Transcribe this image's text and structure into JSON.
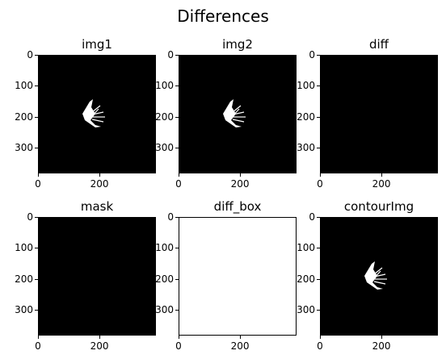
{
  "title": "Differences",
  "chart_data": [
    {
      "type": "image",
      "title": "img1",
      "fill": "#000000",
      "shape": true,
      "xticks": [
        "0",
        "200"
      ],
      "yticks": [
        "0",
        "100",
        "200",
        "300"
      ]
    },
    {
      "type": "image",
      "title": "img2",
      "fill": "#000000",
      "shape": true,
      "xticks": [
        "0",
        "200"
      ],
      "yticks": [
        "0",
        "100",
        "200",
        "300"
      ]
    },
    {
      "type": "image",
      "title": "diff",
      "fill": "#000000",
      "shape": false,
      "xticks": [
        "0",
        "200"
      ],
      "yticks": [
        "0",
        "100",
        "200",
        "300"
      ]
    },
    {
      "type": "image",
      "title": "mask",
      "fill": "#000000",
      "shape": false,
      "xticks": [
        "0",
        "200"
      ],
      "yticks": [
        "0",
        "100",
        "200",
        "300"
      ]
    },
    {
      "type": "image",
      "title": "diff_box",
      "fill": "#ffffff",
      "shape": false,
      "xticks": [
        "0",
        "200"
      ],
      "yticks": [
        "0",
        "100",
        "200",
        "300"
      ]
    },
    {
      "type": "image",
      "title": "contourImg",
      "fill": "#000000",
      "shape": true,
      "xticks": [
        "0",
        "200"
      ],
      "yticks": [
        "0",
        "100",
        "200",
        "300"
      ]
    }
  ]
}
